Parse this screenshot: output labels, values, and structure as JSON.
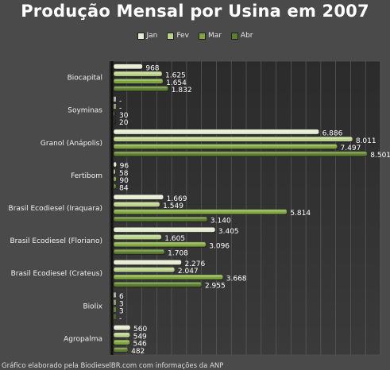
{
  "chart_data": {
    "type": "bar",
    "orientation": "horizontal",
    "title": "Produção Mensal por Usina em 2007",
    "categories": [
      "Biocapital",
      "Soyminas",
      "Granol (Anápolis)",
      "Fertibom",
      "Brasil Ecodiesel (Iraquara)",
      "Brasil Ecodiesel (Floriano)",
      "Brasil Ecodiesel (Crateus)",
      "Biolix",
      "Agropalma"
    ],
    "series": [
      {
        "name": "Jan",
        "color": "#e3ecd0",
        "values": [
          968,
          0,
          6886,
          96,
          1669,
          3405,
          2276,
          6,
          560
        ],
        "labels": [
          "968",
          "-",
          "6.886",
          "96",
          "1.669",
          "3.405",
          "2.276",
          "6",
          "560"
        ]
      },
      {
        "name": "Fev",
        "color": "#b9d18a",
        "values": [
          1625,
          0,
          8011,
          58,
          1549,
          1605,
          2047,
          3,
          549
        ],
        "labels": [
          "1.625",
          "-",
          "8.011",
          "58",
          "1.549",
          "1.605",
          "2.047",
          "3",
          "549"
        ]
      },
      {
        "name": "Mar",
        "color": "#7ea63d",
        "values": [
          1654,
          30,
          7497,
          90,
          5814,
          3096,
          3668,
          3,
          546
        ],
        "labels": [
          "1.654",
          "30",
          "7.497",
          "90",
          "5.814",
          "3.096",
          "3.668",
          "3",
          "546"
        ]
      },
      {
        "name": "Abr",
        "color": "#5c7e2c",
        "values": [
          1832,
          20,
          8501,
          84,
          3140,
          1708,
          2955,
          0,
          482
        ],
        "labels": [
          "1.832",
          "20",
          "8.501",
          "84",
          "3.140",
          "1.708",
          "2.955",
          "-",
          "482"
        ]
      }
    ],
    "xlim": [
      0,
      9000
    ],
    "grid": true,
    "legend_position": "top"
  },
  "footer": "Gráfico elaborado pela BiodieselBR.com com informações da ANP"
}
